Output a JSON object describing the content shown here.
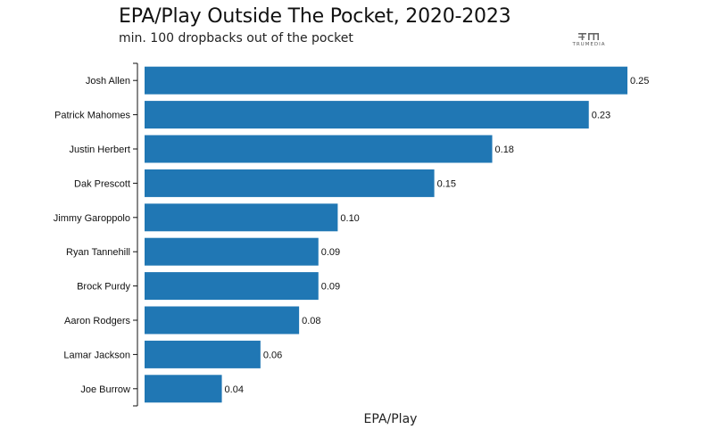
{
  "header": {
    "title": "EPA/Play Outside The Pocket, 2020-2023",
    "subtitle": "min. 100 dropbacks out of the pocket"
  },
  "logo": {
    "text": "TRUMEDIA"
  },
  "colors": {
    "bar": "#2077b4",
    "axis": "#111111"
  },
  "chart_data": {
    "type": "bar",
    "orientation": "horizontal",
    "title": "EPA/Play Outside The Pocket, 2020-2023",
    "subtitle": "min. 100 dropbacks out of the pocket",
    "xlabel": "EPA/Play",
    "ylabel": "",
    "xlim": [
      0,
      0.25
    ],
    "categories": [
      "Josh Allen",
      "Patrick Mahomes",
      "Justin Herbert",
      "Dak Prescott",
      "Jimmy Garoppolo",
      "Ryan Tannehill",
      "Brock Purdy",
      "Aaron Rodgers",
      "Lamar Jackson",
      "Joe Burrow"
    ],
    "values": [
      0.25,
      0.23,
      0.18,
      0.15,
      0.1,
      0.09,
      0.09,
      0.08,
      0.06,
      0.04
    ],
    "value_labels": [
      "0.25",
      "0.23",
      "0.18",
      "0.15",
      "0.10",
      "0.09",
      "0.09",
      "0.08",
      "0.06",
      "0.04"
    ],
    "grid": false,
    "legend": "none"
  }
}
